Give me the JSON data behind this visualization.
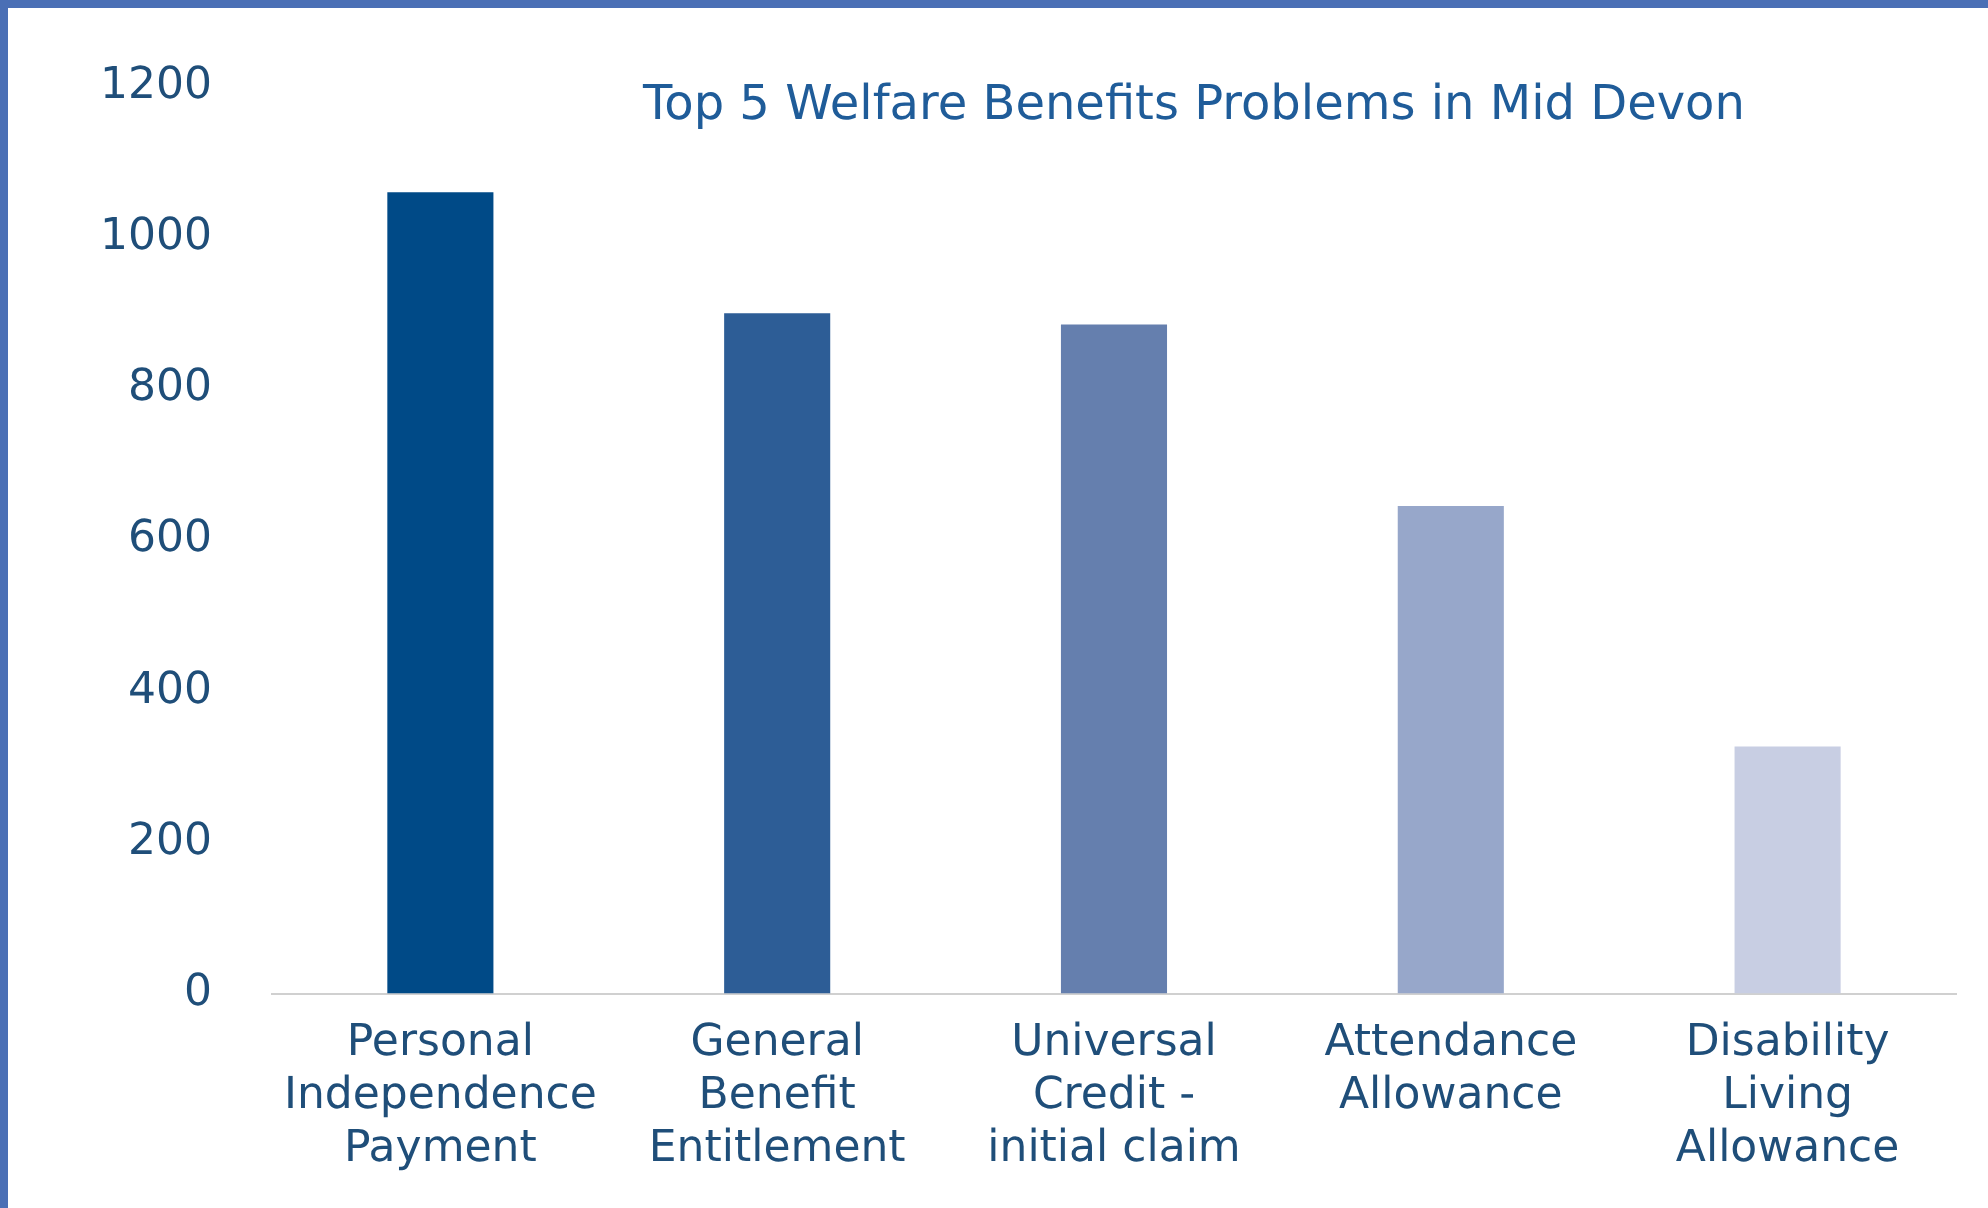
{
  "chart_data": {
    "type": "bar",
    "title": "Top 5 Welfare Benefits Problems in Mid Devon",
    "categories": [
      "Personal Independence Payment",
      "General Benefit Entitlement",
      "Universal Credit - initial claim",
      "Attendance Allowance",
      "Disability Living Allowance"
    ],
    "values": [
      1060,
      900,
      885,
      645,
      327
    ],
    "colors": [
      "#004a87",
      "#2d5d96",
      "#657fae",
      "#97a7ca",
      "#c8cee3"
    ],
    "ylim": [
      0,
      1200
    ],
    "yticks": [
      0,
      200,
      400,
      600,
      800,
      1000,
      1200
    ],
    "grid": false,
    "legend": false
  }
}
